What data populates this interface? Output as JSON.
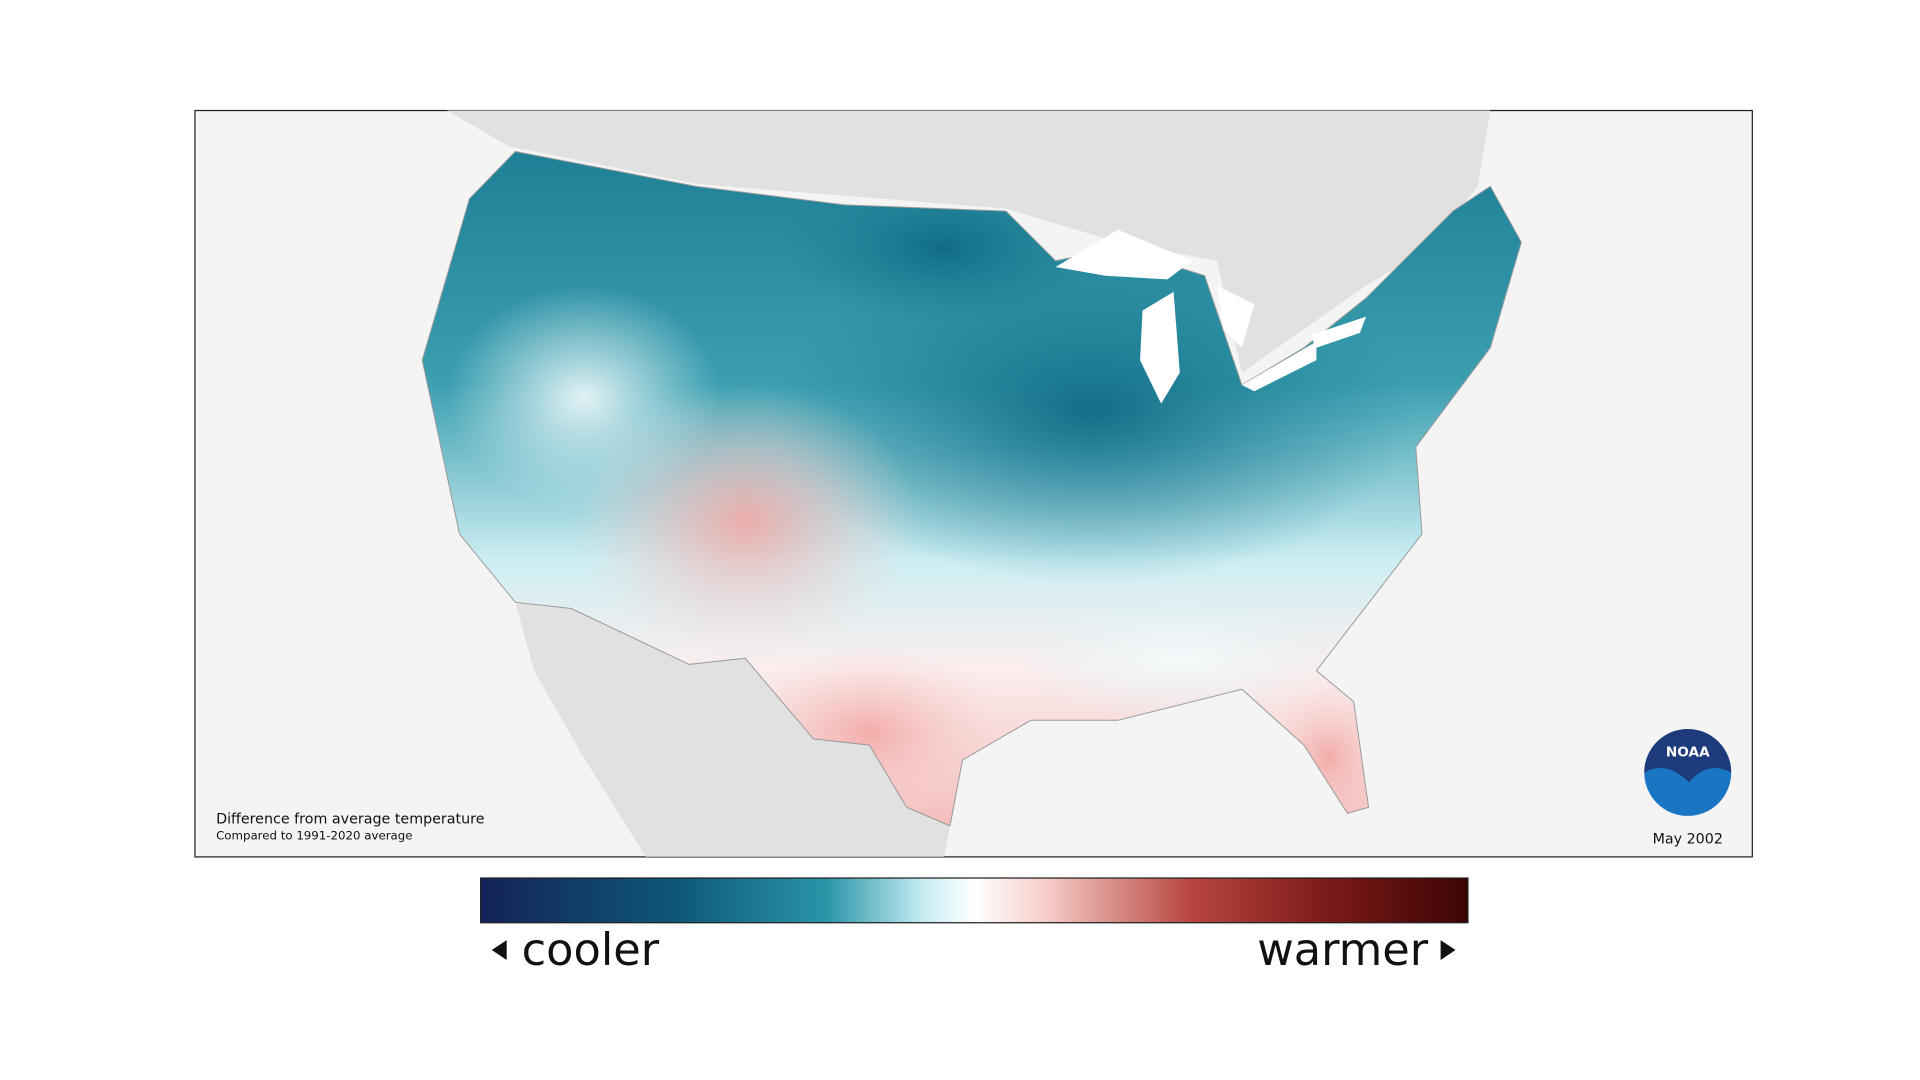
{
  "map": {
    "caption_title": "Difference from average temperature",
    "caption_subtitle": "Compared to 1991-2020 average",
    "date": "May 2002",
    "logo_text": "NOAA"
  },
  "legend": {
    "low_label": "cooler",
    "high_label": "warmer"
  }
}
